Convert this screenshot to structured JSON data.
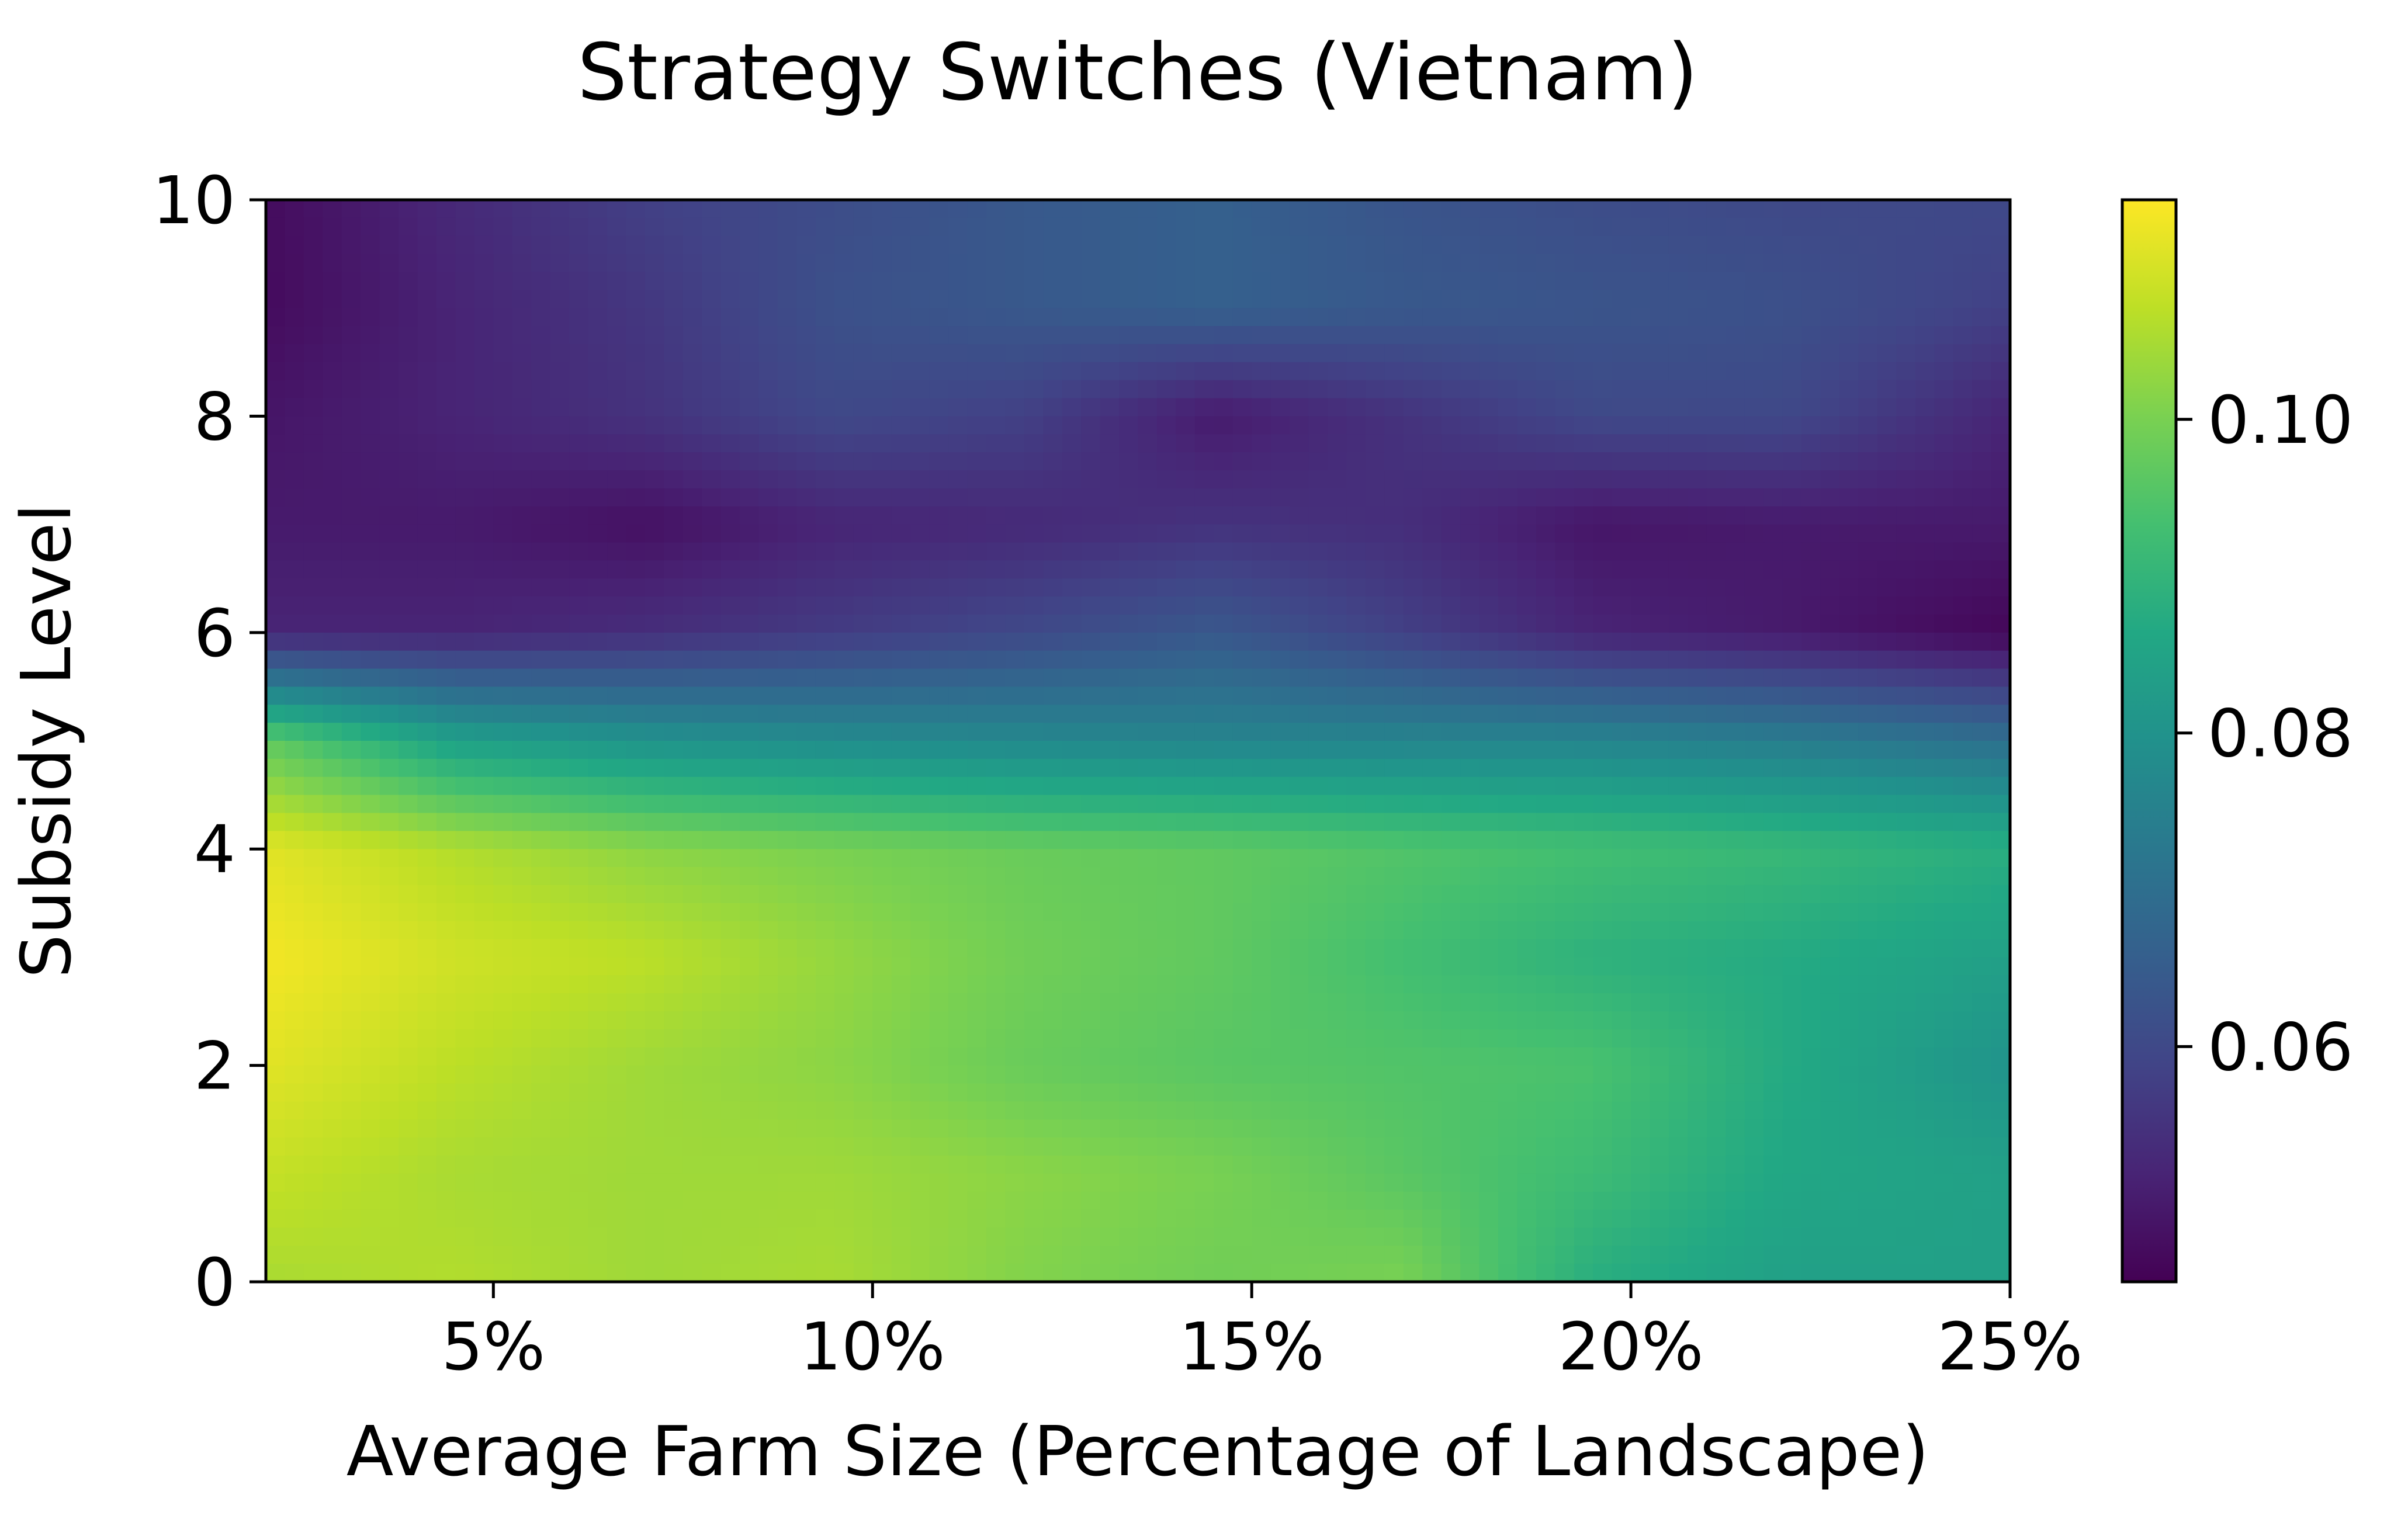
{
  "chart_data": {
    "type": "heatmap",
    "title": "Strategy Switches (Vietnam)",
    "xlabel": "Average Farm Size (Percentage of Landscape)",
    "ylabel": "Subsidy Level",
    "xlim": [
      2,
      25
    ],
    "ylim": [
      0,
      10
    ],
    "x_ticks": [
      5,
      10,
      15,
      20,
      25
    ],
    "x_tick_labels": [
      "5%",
      "10%",
      "15%",
      "20%",
      "25%"
    ],
    "y_ticks": [
      0,
      2,
      4,
      6,
      8,
      10
    ],
    "y_tick_labels": [
      "0",
      "2",
      "4",
      "6",
      "8",
      "10"
    ],
    "colormap": "viridis",
    "colorbar": {
      "range": [
        0.045,
        0.114
      ],
      "ticks": [
        0.06,
        0.08,
        0.1
      ],
      "tick_labels": [
        "0.06",
        "0.08",
        "0.10"
      ]
    },
    "x": [
      2,
      4.5,
      7,
      9.5,
      12,
      14.5,
      17,
      19.5,
      22,
      25
    ],
    "y": [
      0,
      1,
      2,
      3,
      4,
      5,
      6,
      7,
      8,
      9,
      10
    ],
    "z": [
      [
        0.105,
        0.106,
        0.104,
        0.105,
        0.101,
        0.099,
        0.1,
        0.088,
        0.084,
        0.084
      ],
      [
        0.108,
        0.105,
        0.104,
        0.104,
        0.102,
        0.1,
        0.096,
        0.092,
        0.086,
        0.084
      ],
      [
        0.111,
        0.107,
        0.104,
        0.102,
        0.098,
        0.096,
        0.095,
        0.094,
        0.087,
        0.08
      ],
      [
        0.113,
        0.109,
        0.107,
        0.103,
        0.099,
        0.097,
        0.093,
        0.089,
        0.087,
        0.084
      ],
      [
        0.111,
        0.106,
        0.102,
        0.1,
        0.098,
        0.097,
        0.095,
        0.093,
        0.091,
        0.088
      ],
      [
        0.097,
        0.084,
        0.08,
        0.078,
        0.077,
        0.076,
        0.076,
        0.076,
        0.074,
        0.07
      ],
      [
        0.052,
        0.052,
        0.054,
        0.057,
        0.06,
        0.064,
        0.058,
        0.052,
        0.05,
        0.046
      ],
      [
        0.05,
        0.05,
        0.048,
        0.052,
        0.053,
        0.055,
        0.054,
        0.049,
        0.05,
        0.05
      ],
      [
        0.049,
        0.052,
        0.055,
        0.06,
        0.058,
        0.05,
        0.055,
        0.06,
        0.06,
        0.052
      ],
      [
        0.047,
        0.052,
        0.056,
        0.062,
        0.064,
        0.066,
        0.064,
        0.063,
        0.062,
        0.058
      ],
      [
        0.047,
        0.053,
        0.058,
        0.061,
        0.064,
        0.066,
        0.063,
        0.061,
        0.06,
        0.06
      ]
    ]
  }
}
